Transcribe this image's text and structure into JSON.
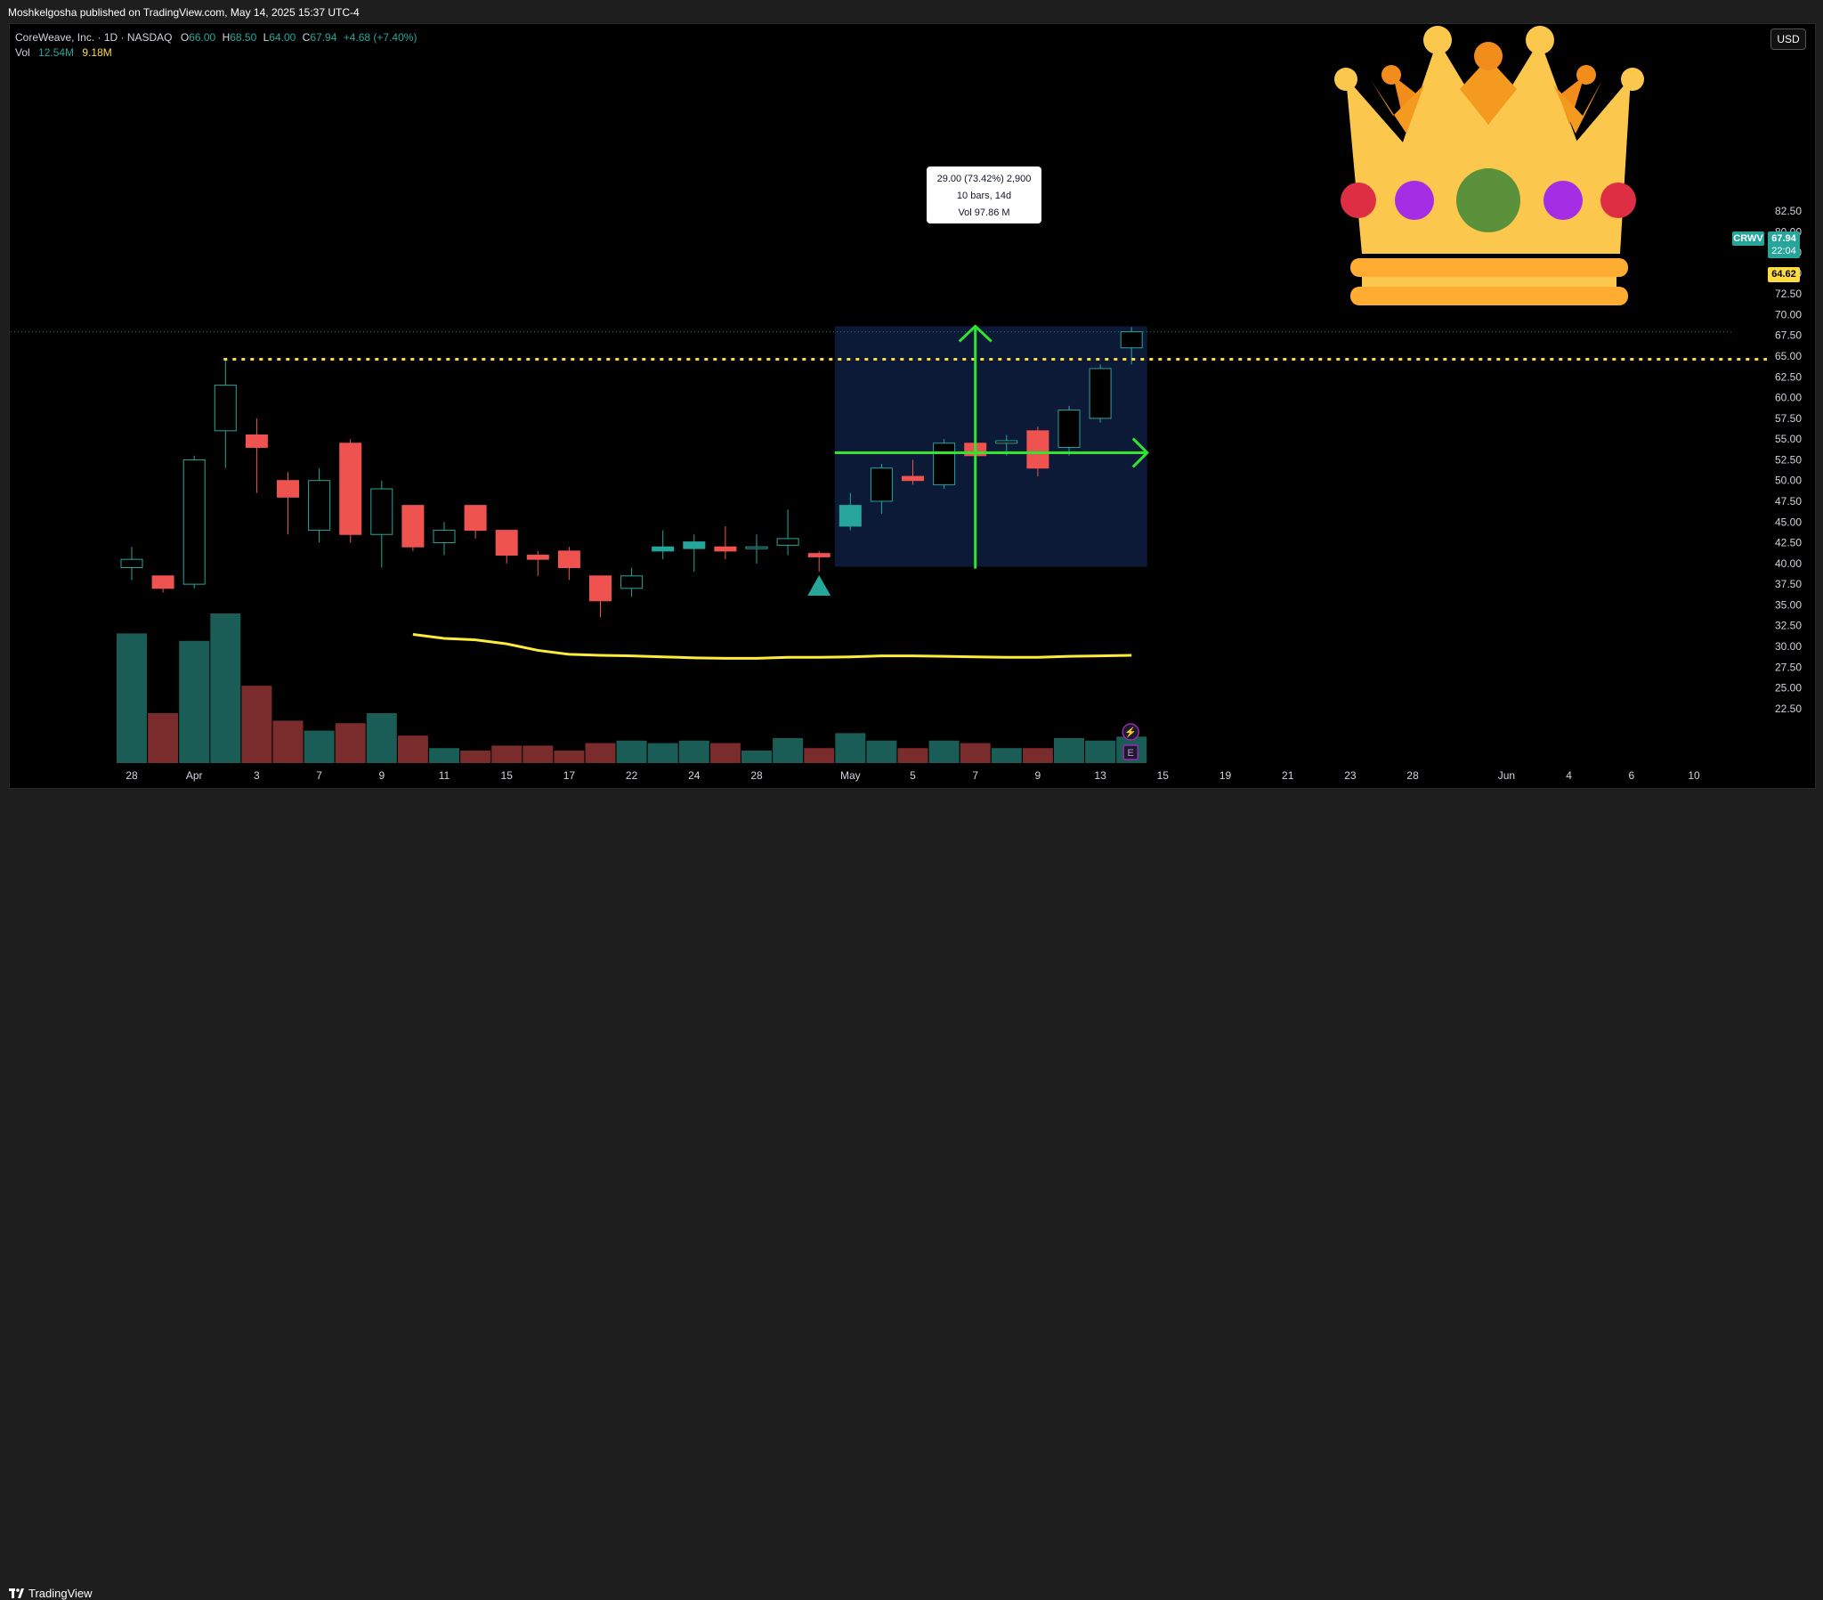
{
  "header": {
    "published": "Moshkelgosha published on TradingView.com, May 14, 2025 15:37 UTC-4"
  },
  "legend": {
    "symbol": "CoreWeave, Inc. · 1D · NASDAQ",
    "o_label": "O",
    "o": "66.00",
    "h_label": "H",
    "h": "68.50",
    "l_label": "L",
    "l": "64.00",
    "c_label": "C",
    "c": "67.94",
    "change": "+4.68 (+7.40%)",
    "vol_label": "Vol",
    "vol1": "12.54M",
    "vol2": "9.18M"
  },
  "currency_button": "USD",
  "tooltip": {
    "line1": "29.00 (73.42%) 2,900",
    "line2": "10 bars, 14d",
    "line3": "Vol 97.86 M"
  },
  "price_labels": {
    "ticker": "CRWV",
    "last_price": "67.94",
    "countdown": "22:04",
    "level": "64.62"
  },
  "footer": {
    "brand": "TradingView"
  },
  "colors": {
    "up": "#26a69a",
    "down": "#ef5350",
    "vol_up": "#1a5c56",
    "vol_down": "#7a2b2b",
    "ma": "#ffeb3b",
    "level": "#fddc40",
    "range_box": "#0d1a3a",
    "arrow": "#2ee62e"
  },
  "chart_data": {
    "type": "candlestick",
    "symbol": "CRWV",
    "timeframe": "1D",
    "ylim": [
      21,
      85
    ],
    "y_ticks": [
      22.5,
      25.0,
      27.5,
      30.0,
      32.5,
      35.0,
      37.5,
      40.0,
      42.5,
      45.0,
      47.5,
      50.0,
      52.5,
      55.0,
      57.5,
      60.0,
      62.5,
      65.0,
      67.5,
      70.0,
      72.5,
      75.0,
      77.5,
      80.0,
      82.5
    ],
    "x_ticks": [
      {
        "label": "28",
        "i": 0
      },
      {
        "label": "Apr",
        "i": 2
      },
      {
        "label": "3",
        "i": 4
      },
      {
        "label": "7",
        "i": 6
      },
      {
        "label": "9",
        "i": 8
      },
      {
        "label": "11",
        "i": 10
      },
      {
        "label": "15",
        "i": 12
      },
      {
        "label": "17",
        "i": 14
      },
      {
        "label": "22",
        "i": 16
      },
      {
        "label": "24",
        "i": 18
      },
      {
        "label": "28",
        "i": 20
      },
      {
        "label": "May",
        "i": 23
      },
      {
        "label": "5",
        "i": 25
      },
      {
        "label": "7",
        "i": 27
      },
      {
        "label": "9",
        "i": 29
      },
      {
        "label": "13",
        "i": 31
      },
      {
        "label": "15",
        "i": 33
      },
      {
        "label": "19",
        "i": 35
      },
      {
        "label": "21",
        "i": 37
      },
      {
        "label": "23",
        "i": 39
      },
      {
        "label": "28",
        "i": 41
      },
      {
        "label": "Jun",
        "i": 44
      },
      {
        "label": "4",
        "i": 46
      },
      {
        "label": "6",
        "i": 48
      },
      {
        "label": "10",
        "i": 50
      }
    ],
    "candles": [
      {
        "o": 39.5,
        "h": 42.0,
        "l": 38.0,
        "c": 40.5,
        "v": 26.0
      },
      {
        "o": 38.5,
        "h": 38.5,
        "l": 36.5,
        "c": 37.0,
        "v": 10.0
      },
      {
        "o": 37.5,
        "h": 53.0,
        "l": 37.0,
        "c": 52.5,
        "v": 24.5
      },
      {
        "o": 56.0,
        "h": 64.6,
        "l": 51.5,
        "c": 61.5,
        "v": 30.0
      },
      {
        "o": 55.5,
        "h": 57.5,
        "l": 48.5,
        "c": 54.0,
        "v": 15.5
      },
      {
        "o": 50.0,
        "h": 51.0,
        "l": 43.5,
        "c": 48.0,
        "v": 8.5
      },
      {
        "o": 44.0,
        "h": 51.5,
        "l": 42.5,
        "c": 50.0,
        "v": 6.5
      },
      {
        "o": 54.5,
        "h": 55.0,
        "l": 42.5,
        "c": 43.5,
        "v": 8.0
      },
      {
        "o": 43.5,
        "h": 50.0,
        "l": 39.5,
        "c": 49.0,
        "v": 10.0
      },
      {
        "o": 47.0,
        "h": 47.0,
        "l": 41.5,
        "c": 42.0,
        "v": 5.5
      },
      {
        "o": 42.5,
        "h": 45.0,
        "l": 41.0,
        "c": 44.0,
        "v": 3.0
      },
      {
        "o": 47.0,
        "h": 47.0,
        "l": 43.0,
        "c": 44.0,
        "v": 2.5
      },
      {
        "o": 44.0,
        "h": 44.0,
        "l": 40.0,
        "c": 41.0,
        "v": 3.5
      },
      {
        "o": 41.0,
        "h": 41.5,
        "l": 38.5,
        "c": 40.5,
        "v": 3.5
      },
      {
        "o": 41.5,
        "h": 42.0,
        "l": 38.0,
        "c": 39.5,
        "v": 2.5
      },
      {
        "o": 38.5,
        "h": 38.5,
        "l": 33.5,
        "c": 35.5,
        "v": 4.0
      },
      {
        "o": 37.0,
        "h": 39.5,
        "l": 36.0,
        "c": 38.5,
        "v": 4.5
      },
      {
        "o": 41.5,
        "h": 44.0,
        "l": 40.5,
        "c": 42.0,
        "v": 4.0
      },
      {
        "o": 41.8,
        "h": 43.5,
        "l": 39.0,
        "c": 42.6,
        "v": 4.5
      },
      {
        "o": 42.0,
        "h": 44.5,
        "l": 40.5,
        "c": 41.5,
        "v": 4.0
      },
      {
        "o": 42.0,
        "h": 43.5,
        "l": 40.0,
        "c": 42.0,
        "v": 2.5
      },
      {
        "o": 42.2,
        "h": 46.5,
        "l": 41.0,
        "c": 43.0,
        "v": 5.0
      },
      {
        "o": 41.2,
        "h": 41.5,
        "l": 39.0,
        "c": 40.8,
        "v": 3.0
      },
      {
        "o": 44.5,
        "h": 48.5,
        "l": 44.0,
        "c": 47.0,
        "v": 6.0
      },
      {
        "o": 47.5,
        "h": 52.0,
        "l": 46.0,
        "c": 51.5,
        "v": 4.5
      },
      {
        "o": 50.5,
        "h": 52.5,
        "l": 49.5,
        "c": 50.0,
        "v": 3.0
      },
      {
        "o": 49.5,
        "h": 55.0,
        "l": 49.0,
        "c": 54.5,
        "v": 4.5
      },
      {
        "o": 54.5,
        "h": 55.0,
        "l": 49.0,
        "c": 53.0,
        "v": 4.0
      },
      {
        "o": 54.5,
        "h": 55.5,
        "l": 53.0,
        "c": 54.8,
        "v": 3.0
      },
      {
        "o": 56.0,
        "h": 56.5,
        "l": 50.5,
        "c": 51.5,
        "v": 3.0
      },
      {
        "o": 54.0,
        "h": 59.0,
        "l": 53.0,
        "c": 58.5,
        "v": 5.0
      },
      {
        "o": 57.5,
        "h": 64.0,
        "l": 57.0,
        "c": 63.5,
        "v": 4.5
      },
      {
        "o": 66.0,
        "h": 68.5,
        "l": 64.0,
        "c": 67.94,
        "v": 5.3
      }
    ],
    "ma": [
      {
        "i": 9,
        "v": 25.8
      },
      {
        "i": 10,
        "v": 25.0
      },
      {
        "i": 11,
        "v": 24.7
      },
      {
        "i": 12,
        "v": 23.9
      },
      {
        "i": 13,
        "v": 22.6
      },
      {
        "i": 14,
        "v": 21.8
      },
      {
        "i": 15,
        "v": 21.6
      },
      {
        "i": 16,
        "v": 21.5
      },
      {
        "i": 17,
        "v": 21.3
      },
      {
        "i": 18,
        "v": 21.1
      },
      {
        "i": 19,
        "v": 21.0
      },
      {
        "i": 20,
        "v": 21.0
      },
      {
        "i": 21,
        "v": 21.2
      },
      {
        "i": 22,
        "v": 21.2
      },
      {
        "i": 23,
        "v": 21.3
      },
      {
        "i": 24,
        "v": 21.5
      },
      {
        "i": 25,
        "v": 21.5
      },
      {
        "i": 26,
        "v": 21.4
      },
      {
        "i": 27,
        "v": 21.3
      },
      {
        "i": 28,
        "v": 21.2
      },
      {
        "i": 29,
        "v": 21.2
      },
      {
        "i": 30,
        "v": 21.4
      },
      {
        "i": 31,
        "v": 21.5
      },
      {
        "i": 32,
        "v": 21.6
      }
    ],
    "level_line": 64.62,
    "last_price": 67.94,
    "range_box": {
      "from_i": 22.5,
      "to_i": 32.5,
      "low": 39.6,
      "high": 68.6
    },
    "crosshair": {
      "i": 27,
      "price": 54.0
    },
    "arrow_up_marker": {
      "i": 22,
      "price": 37.3
    }
  }
}
